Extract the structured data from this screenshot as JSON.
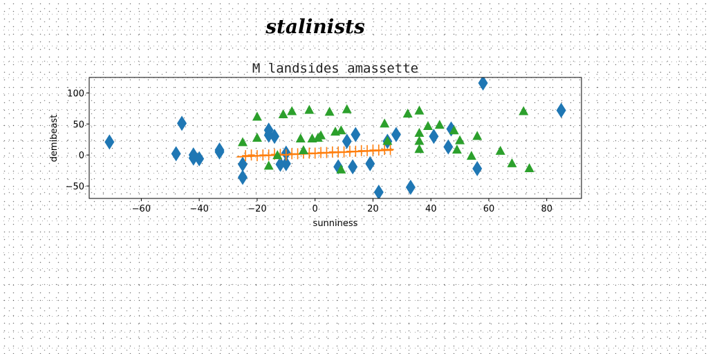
{
  "suptitle": "stalinists",
  "chart_data": {
    "type": "scatter",
    "title": "M landsides amassette",
    "xlabel": "sunniness",
    "ylabel": "demibeast",
    "xlim": [
      -78,
      92
    ],
    "ylim": [
      -70,
      125
    ],
    "xticks": [
      -60,
      -40,
      -20,
      0,
      20,
      40,
      60,
      80
    ],
    "yticks": [
      -50,
      0,
      50,
      100
    ],
    "grid": false,
    "colors": {
      "blue": "#1f77b4",
      "orange": "#ff7f0e",
      "green": "#2ca02c"
    },
    "series": [
      {
        "marker": "diamond",
        "color": "#1f77b4",
        "points": [
          [
            -71,
            21
          ],
          [
            -48,
            2
          ],
          [
            -46,
            51
          ],
          [
            -42,
            0
          ],
          [
            -42,
            -5
          ],
          [
            -40,
            -6
          ],
          [
            -33,
            8
          ],
          [
            -33,
            5
          ],
          [
            -25,
            -36
          ],
          [
            -25,
            -15
          ],
          [
            -16,
            40
          ],
          [
            -16,
            32
          ],
          [
            -14,
            30
          ],
          [
            -12,
            -15
          ],
          [
            -10,
            -14
          ],
          [
            -10,
            3
          ],
          [
            8,
            -19
          ],
          [
            11,
            22
          ],
          [
            13,
            -19
          ],
          [
            14,
            33
          ],
          [
            19,
            -14
          ],
          [
            22,
            -60
          ],
          [
            25,
            22
          ],
          [
            28,
            33
          ],
          [
            33,
            -52
          ],
          [
            41,
            30
          ],
          [
            46,
            13
          ],
          [
            47,
            42
          ],
          [
            56,
            -22
          ],
          [
            58,
            116
          ],
          [
            85,
            72
          ]
        ]
      },
      {
        "marker": "plus",
        "color": "#ff7f0e",
        "points": [
          [
            -24,
            -1
          ],
          [
            -22,
            0
          ],
          [
            -20,
            -1
          ],
          [
            -18,
            0
          ],
          [
            -16,
            0
          ],
          [
            -14,
            1
          ],
          [
            -12,
            1
          ],
          [
            -10,
            0
          ],
          [
            -8,
            2
          ],
          [
            -6,
            2
          ],
          [
            -4,
            3
          ],
          [
            -2,
            3
          ],
          [
            0,
            3
          ],
          [
            2,
            4
          ],
          [
            4,
            4
          ],
          [
            6,
            5
          ],
          [
            8,
            5
          ],
          [
            10,
            5
          ],
          [
            12,
            6
          ],
          [
            14,
            6
          ],
          [
            16,
            7
          ],
          [
            18,
            7
          ],
          [
            20,
            8
          ],
          [
            22,
            8
          ],
          [
            24,
            9
          ],
          [
            26,
            9
          ]
        ],
        "line": [
          [
            -27,
            -3
          ],
          [
            27,
            8
          ]
        ]
      },
      {
        "marker": "triangle",
        "color": "#2ca02c",
        "points": [
          [
            -25,
            21
          ],
          [
            -20,
            62
          ],
          [
            -20,
            28
          ],
          [
            -16,
            -17
          ],
          [
            -13,
            0
          ],
          [
            -11,
            66
          ],
          [
            -8,
            71
          ],
          [
            -5,
            27
          ],
          [
            -4,
            8
          ],
          [
            -2,
            73
          ],
          [
            -1,
            27
          ],
          [
            1,
            28
          ],
          [
            2,
            32
          ],
          [
            5,
            70
          ],
          [
            7,
            38
          ],
          [
            9,
            40
          ],
          [
            9,
            -23
          ],
          [
            11,
            74
          ],
          [
            24,
            51
          ],
          [
            25,
            23
          ],
          [
            32,
            67
          ],
          [
            36,
            72
          ],
          [
            36,
            36
          ],
          [
            36,
            23
          ],
          [
            36,
            10
          ],
          [
            39,
            47
          ],
          [
            43,
            49
          ],
          [
            48,
            40
          ],
          [
            49,
            9
          ],
          [
            50,
            24
          ],
          [
            54,
            -1
          ],
          [
            56,
            31
          ],
          [
            64,
            7
          ],
          [
            68,
            -13
          ],
          [
            72,
            71
          ],
          [
            74,
            -21
          ]
        ]
      }
    ]
  }
}
